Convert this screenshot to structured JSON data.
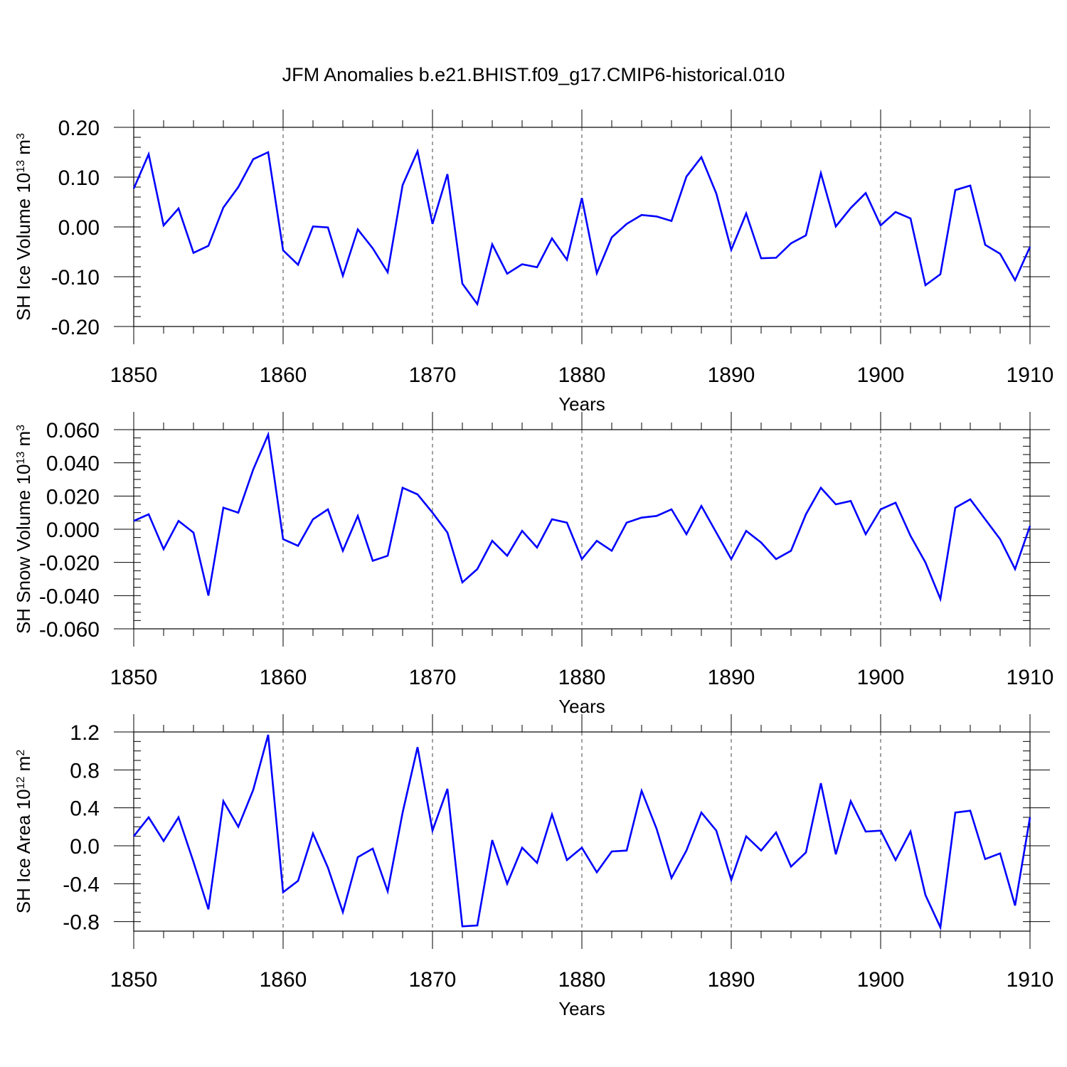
{
  "figure": {
    "title": "JFM Anomalies b.e21.BHIST.f09_g17.CMIP6-historical.010",
    "line_color": "#0000ff",
    "grid_color": "#444444"
  },
  "chart_data": [
    {
      "type": "line",
      "title": "",
      "xlabel": "Years",
      "ylabel": {
        "base": "SH Ice Volume 10",
        "exponent": "13",
        "unit": " m",
        "unit_exponent": "3"
      },
      "xlim": [
        1850,
        1910
      ],
      "ylim": [
        -0.2,
        0.2
      ],
      "x_ticks": [
        1850,
        1860,
        1870,
        1880,
        1890,
        1900,
        1910
      ],
      "x_tick_labels": [
        "1850",
        "1860",
        "1870",
        "1880",
        "1890",
        "1900",
        "1910"
      ],
      "y_ticks": [
        -0.2,
        -0.1,
        0.0,
        0.1,
        0.2
      ],
      "y_tick_labels": [
        "-0.20",
        "-0.10",
        "0.00",
        "0.10",
        "0.20"
      ],
      "y_minor_step": 0.02,
      "grid": "dashed vertical at major x ticks",
      "series": [
        {
          "name": "SH Ice Volume",
          "x": [
            1850,
            1851,
            1852,
            1853,
            1854,
            1855,
            1856,
            1857,
            1858,
            1859,
            1860,
            1861,
            1862,
            1863,
            1864,
            1865,
            1866,
            1867,
            1868,
            1869,
            1870,
            1871,
            1872,
            1873,
            1874,
            1875,
            1876,
            1877,
            1878,
            1879,
            1880,
            1881,
            1882,
            1883,
            1884,
            1885,
            1886,
            1887,
            1888,
            1889,
            1890,
            1891,
            1892,
            1893,
            1894,
            1895,
            1896,
            1897,
            1898,
            1899,
            1900,
            1901,
            1902,
            1903,
            1904,
            1905,
            1906,
            1907,
            1908,
            1909,
            1910
          ],
          "values": [
            0.077,
            0.146,
            0.003,
            0.037,
            -0.052,
            -0.038,
            0.039,
            0.08,
            0.136,
            0.15,
            -0.047,
            -0.076,
            0.001,
            -0.001,
            -0.098,
            -0.005,
            -0.043,
            -0.091,
            0.084,
            0.152,
            0.006,
            0.106,
            -0.114,
            -0.155,
            -0.035,
            -0.094,
            -0.075,
            -0.081,
            -0.023,
            -0.066,
            0.058,
            -0.093,
            -0.021,
            0.006,
            0.024,
            0.021,
            0.012,
            0.101,
            0.14,
            0.067,
            -0.046,
            0.027,
            -0.063,
            -0.062,
            -0.033,
            -0.017,
            0.108,
            0.001,
            0.038,
            0.068,
            0.003,
            0.03,
            0.017,
            -0.117,
            -0.095,
            0.074,
            0.083,
            -0.036,
            -0.054,
            -0.107,
            -0.04
          ]
        }
      ]
    },
    {
      "type": "line",
      "title": "",
      "xlabel": "Years",
      "ylabel": {
        "base": "SH Snow Volume 10",
        "exponent": "13",
        "unit": " m",
        "unit_exponent": "3"
      },
      "xlim": [
        1850,
        1910
      ],
      "ylim": [
        -0.06,
        0.06
      ],
      "x_ticks": [
        1850,
        1860,
        1870,
        1880,
        1890,
        1900,
        1910
      ],
      "x_tick_labels": [
        "1850",
        "1860",
        "1870",
        "1880",
        "1890",
        "1900",
        "1910"
      ],
      "y_ticks": [
        -0.06,
        -0.04,
        -0.02,
        0.0,
        0.02,
        0.04,
        0.06
      ],
      "y_tick_labels": [
        "-0.060",
        "-0.040",
        "-0.020",
        "0.000",
        "0.020",
        "0.040",
        "0.060"
      ],
      "y_minor_step": 0.005,
      "grid": "dashed vertical at major x ticks",
      "series": [
        {
          "name": "SH Snow Volume",
          "x": [
            1850,
            1851,
            1852,
            1853,
            1854,
            1855,
            1856,
            1857,
            1858,
            1859,
            1860,
            1861,
            1862,
            1863,
            1864,
            1865,
            1866,
            1867,
            1868,
            1869,
            1870,
            1871,
            1872,
            1873,
            1874,
            1875,
            1876,
            1877,
            1878,
            1879,
            1880,
            1881,
            1882,
            1883,
            1884,
            1885,
            1886,
            1887,
            1888,
            1889,
            1890,
            1891,
            1892,
            1893,
            1894,
            1895,
            1896,
            1897,
            1898,
            1899,
            1900,
            1901,
            1902,
            1903,
            1904,
            1905,
            1906,
            1907,
            1908,
            1909,
            1910
          ],
          "values": [
            0.005,
            0.009,
            -0.012,
            0.005,
            -0.002,
            -0.04,
            0.013,
            0.01,
            0.036,
            0.057,
            -0.006,
            -0.01,
            0.006,
            0.012,
            -0.013,
            0.008,
            -0.019,
            -0.016,
            0.025,
            0.021,
            0.01,
            -0.002,
            -0.032,
            -0.024,
            -0.007,
            -0.016,
            -0.001,
            -0.011,
            0.006,
            0.004,
            -0.018,
            -0.007,
            -0.013,
            0.004,
            0.007,
            0.008,
            0.012,
            -0.003,
            0.014,
            -0.002,
            -0.018,
            -0.001,
            -0.008,
            -0.018,
            -0.013,
            0.009,
            0.025,
            0.015,
            0.017,
            -0.003,
            0.012,
            0.016,
            -0.004,
            -0.02,
            -0.042,
            0.013,
            0.018,
            0.006,
            -0.006,
            -0.024,
            0.002
          ]
        }
      ]
    },
    {
      "type": "line",
      "title": "",
      "xlabel": "Years",
      "ylabel": {
        "base": "SH Ice Area 10",
        "exponent": "12",
        "unit": " m",
        "unit_exponent": "2"
      },
      "xlim": [
        1850,
        1910
      ],
      "ylim": [
        -0.9,
        1.2
      ],
      "x_ticks": [
        1850,
        1860,
        1870,
        1880,
        1890,
        1900,
        1910
      ],
      "x_tick_labels": [
        "1850",
        "1860",
        "1870",
        "1880",
        "1890",
        "1900",
        "1910"
      ],
      "y_ticks": [
        -0.8,
        -0.4,
        0.0,
        0.4,
        0.8,
        1.2
      ],
      "y_tick_labels": [
        "-0.8",
        "-0.4",
        "0.0",
        "0.4",
        "0.8",
        "1.2"
      ],
      "y_minor_step": 0.1,
      "grid": "dashed vertical at major x ticks",
      "series": [
        {
          "name": "SH Ice Area",
          "x": [
            1850,
            1851,
            1852,
            1853,
            1854,
            1855,
            1856,
            1857,
            1858,
            1859,
            1860,
            1861,
            1862,
            1863,
            1864,
            1865,
            1866,
            1867,
            1868,
            1869,
            1870,
            1871,
            1872,
            1873,
            1874,
            1875,
            1876,
            1877,
            1878,
            1879,
            1880,
            1881,
            1882,
            1883,
            1884,
            1885,
            1886,
            1887,
            1888,
            1889,
            1890,
            1891,
            1892,
            1893,
            1894,
            1895,
            1896,
            1897,
            1898,
            1899,
            1900,
            1901,
            1902,
            1903,
            1904,
            1905,
            1906,
            1907,
            1908,
            1909,
            1910
          ],
          "values": [
            0.1,
            0.3,
            0.05,
            0.3,
            -0.17,
            -0.67,
            0.47,
            0.2,
            0.59,
            1.17,
            -0.49,
            -0.37,
            0.13,
            -0.23,
            -0.7,
            -0.12,
            -0.03,
            -0.48,
            0.35,
            1.04,
            0.16,
            0.6,
            -0.85,
            -0.84,
            0.06,
            -0.4,
            -0.02,
            -0.18,
            0.33,
            -0.15,
            -0.02,
            -0.28,
            -0.06,
            -0.05,
            0.58,
            0.18,
            -0.34,
            -0.05,
            0.35,
            0.16,
            -0.36,
            0.1,
            -0.05,
            0.14,
            -0.22,
            -0.07,
            0.66,
            -0.09,
            0.47,
            0.15,
            0.16,
            -0.15,
            0.15,
            -0.52,
            -0.86,
            0.35,
            0.37,
            -0.14,
            -0.08,
            -0.63,
            0.3
          ]
        }
      ]
    }
  ]
}
